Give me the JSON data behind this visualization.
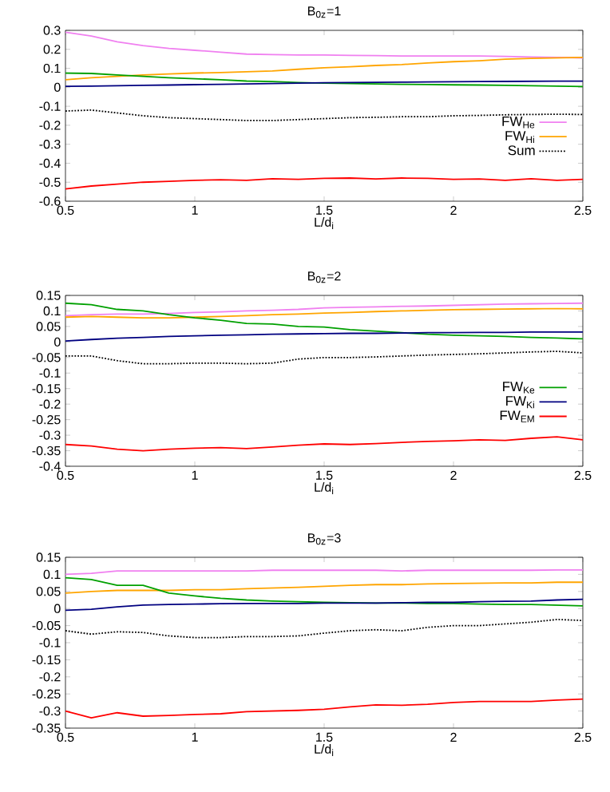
{
  "chart_data": [
    {
      "type": "line",
      "title": "B$_{0z}$=1",
      "xlabel": "L/d$_{i}$",
      "x": [
        0.5,
        0.6,
        0.7,
        0.8,
        0.9,
        1,
        1.1,
        1.2,
        1.3,
        1.4,
        1.5,
        1.6,
        1.7,
        1.8,
        1.9,
        2,
        2.1,
        2.2,
        2.3,
        2.4,
        2.5
      ],
      "xlim": [
        0.5,
        2.5
      ],
      "xticks": [
        0.5,
        1,
        1.5,
        2,
        2.5
      ],
      "ylim": [
        -0.6,
        0.3
      ],
      "yticks": [
        -0.6,
        -0.5,
        -0.4,
        -0.3,
        -0.2,
        -0.1,
        0,
        0.1,
        0.2,
        0.3
      ],
      "legend": "bottom right",
      "marker": "none",
      "line_style": "solid",
      "grid": false,
      "series": [
        {
          "name": "FW$_{He}$",
          "color": "#f080f0",
          "values": [
            0.29,
            0.27,
            0.24,
            0.22,
            0.205,
            0.195,
            0.185,
            0.175,
            0.172,
            0.17,
            0.17,
            0.168,
            0.167,
            0.165,
            0.165,
            0.165,
            0.165,
            0.163,
            0.16,
            0.158,
            0.155
          ]
        },
        {
          "name": "FW$_{Hi}$",
          "color": "#ffa500",
          "values": [
            0.04,
            0.05,
            0.058,
            0.065,
            0.07,
            0.075,
            0.078,
            0.082,
            0.086,
            0.095,
            0.103,
            0.108,
            0.115,
            0.12,
            0.128,
            0.135,
            0.14,
            0.148,
            0.152,
            0.155,
            0.158
          ]
        },
        {
          "name": "Sum",
          "color": "#000000",
          "line_style": "dotted",
          "values": [
            -0.125,
            -0.12,
            -0.135,
            -0.15,
            -0.16,
            -0.165,
            -0.17,
            -0.175,
            -0.175,
            -0.17,
            -0.165,
            -0.16,
            -0.158,
            -0.155,
            -0.155,
            -0.15,
            -0.148,
            -0.145,
            -0.143,
            -0.142,
            -0.143
          ]
        },
        {
          "color": "#00a000",
          "values": [
            0.075,
            0.073,
            0.065,
            0.058,
            0.05,
            0.045,
            0.04,
            0.033,
            0.03,
            0.025,
            0.022,
            0.02,
            0.018,
            0.016,
            0.015,
            0.013,
            0.012,
            0.01,
            0.008,
            0.006,
            0.004
          ]
        },
        {
          "color": "#000080",
          "values": [
            0.005,
            0.006,
            0.008,
            0.01,
            0.012,
            0.014,
            0.016,
            0.018,
            0.02,
            0.022,
            0.024,
            0.025,
            0.026,
            0.027,
            0.028,
            0.029,
            0.03,
            0.031,
            0.032,
            0.033,
            0.033
          ]
        },
        {
          "color": "#ff0000",
          "values": [
            -0.535,
            -0.52,
            -0.51,
            -0.5,
            -0.495,
            -0.49,
            -0.487,
            -0.49,
            -0.482,
            -0.485,
            -0.48,
            -0.478,
            -0.483,
            -0.478,
            -0.48,
            -0.485,
            -0.483,
            -0.49,
            -0.482,
            -0.49,
            -0.485
          ]
        }
      ]
    },
    {
      "type": "line",
      "title": "B$_{0z}$=2",
      "xlabel": "L/d$_{i}$",
      "x": [
        0.5,
        0.6,
        0.7,
        0.8,
        0.9,
        1,
        1.1,
        1.2,
        1.3,
        1.4,
        1.5,
        1.6,
        1.7,
        1.8,
        1.9,
        2,
        2.1,
        2.2,
        2.3,
        2.4,
        2.5
      ],
      "xlim": [
        0.5,
        2.5
      ],
      "xticks": [
        0.5,
        1,
        1.5,
        2,
        2.5
      ],
      "ylim": [
        -0.4,
        0.15
      ],
      "yticks": [
        -0.4,
        -0.35,
        -0.3,
        -0.25,
        -0.2,
        -0.15,
        -0.1,
        -0.05,
        0,
        0.05,
        0.1,
        0.15
      ],
      "legend": "bottom right",
      "marker": "none",
      "line_style": "solid",
      "grid": false,
      "series": [
        {
          "color": "#f080f0",
          "values": [
            0.085,
            0.088,
            0.09,
            0.09,
            0.092,
            0.095,
            0.097,
            0.1,
            0.102,
            0.105,
            0.11,
            0.112,
            0.113,
            0.115,
            0.116,
            0.118,
            0.12,
            0.122,
            0.123,
            0.124,
            0.125
          ]
        },
        {
          "color": "#ffa500",
          "values": [
            0.08,
            0.082,
            0.08,
            0.078,
            0.078,
            0.08,
            0.082,
            0.085,
            0.088,
            0.09,
            0.093,
            0.095,
            0.098,
            0.1,
            0.102,
            0.104,
            0.105,
            0.106,
            0.107,
            0.108,
            0.107
          ]
        },
        {
          "color": "#000000",
          "line_style": "dotted",
          "values": [
            -0.045,
            -0.045,
            -0.06,
            -0.07,
            -0.07,
            -0.068,
            -0.068,
            -0.07,
            -0.068,
            -0.055,
            -0.05,
            -0.05,
            -0.048,
            -0.045,
            -0.042,
            -0.04,
            -0.038,
            -0.035,
            -0.032,
            -0.03,
            -0.035
          ]
        },
        {
          "name": "FW$_{Ke}$",
          "color": "#00a000",
          "values": [
            0.125,
            0.12,
            0.105,
            0.1,
            0.088,
            0.078,
            0.07,
            0.06,
            0.058,
            0.05,
            0.048,
            0.04,
            0.035,
            0.03,
            0.025,
            0.022,
            0.02,
            0.018,
            0.015,
            0.013,
            0.01
          ]
        },
        {
          "name": "FW$_{Ki}$",
          "color": "#000080",
          "values": [
            0.003,
            0.008,
            0.012,
            0.015,
            0.018,
            0.02,
            0.022,
            0.023,
            0.025,
            0.026,
            0.027,
            0.028,
            0.028,
            0.029,
            0.03,
            0.03,
            0.031,
            0.031,
            0.032,
            0.032,
            0.032
          ]
        },
        {
          "name": "FW$_{EM}$",
          "color": "#ff0000",
          "values": [
            -0.33,
            -0.335,
            -0.345,
            -0.35,
            -0.345,
            -0.342,
            -0.34,
            -0.343,
            -0.338,
            -0.332,
            -0.328,
            -0.33,
            -0.327,
            -0.323,
            -0.32,
            -0.318,
            -0.315,
            -0.317,
            -0.31,
            -0.305,
            -0.315
          ]
        }
      ]
    },
    {
      "type": "line",
      "title": "B$_{0z}$=3",
      "xlabel": "L/d$_{i}$",
      "x": [
        0.5,
        0.6,
        0.7,
        0.8,
        0.9,
        1,
        1.1,
        1.2,
        1.3,
        1.4,
        1.5,
        1.6,
        1.7,
        1.8,
        1.9,
        2,
        2.1,
        2.2,
        2.3,
        2.4,
        2.5
      ],
      "xlim": [
        0.5,
        2.5
      ],
      "xticks": [
        0.5,
        1,
        1.5,
        2,
        2.5
      ],
      "ylim": [
        -0.35,
        0.15
      ],
      "yticks": [
        -0.35,
        -0.3,
        -0.25,
        -0.2,
        -0.15,
        -0.1,
        -0.05,
        0,
        0.05,
        0.1,
        0.15
      ],
      "marker": "none",
      "line_style": "solid",
      "grid": false,
      "series": [
        {
          "color": "#f080f0",
          "values": [
            0.1,
            0.103,
            0.11,
            0.11,
            0.11,
            0.11,
            0.11,
            0.11,
            0.112,
            0.112,
            0.112,
            0.112,
            0.112,
            0.11,
            0.112,
            0.112,
            0.112,
            0.112,
            0.112,
            0.113,
            0.113
          ]
        },
        {
          "color": "#ffa500",
          "values": [
            0.045,
            0.05,
            0.053,
            0.053,
            0.053,
            0.055,
            0.055,
            0.058,
            0.06,
            0.062,
            0.065,
            0.068,
            0.07,
            0.07,
            0.072,
            0.073,
            0.074,
            0.075,
            0.075,
            0.077,
            0.077
          ]
        },
        {
          "color": "#000000",
          "line_style": "dotted",
          "values": [
            -0.065,
            -0.075,
            -0.068,
            -0.07,
            -0.08,
            -0.085,
            -0.085,
            -0.082,
            -0.082,
            -0.08,
            -0.072,
            -0.065,
            -0.062,
            -0.065,
            -0.055,
            -0.05,
            -0.05,
            -0.045,
            -0.04,
            -0.032,
            -0.035
          ]
        },
        {
          "color": "#00a000",
          "values": [
            0.09,
            0.085,
            0.068,
            0.068,
            0.045,
            0.037,
            0.03,
            0.025,
            0.022,
            0.02,
            0.018,
            0.017,
            0.016,
            0.016,
            0.015,
            0.015,
            0.013,
            0.012,
            0.012,
            0.01,
            0.008
          ]
        },
        {
          "color": "#000080",
          "values": [
            -0.005,
            -0.002,
            0.005,
            0.01,
            0.012,
            0.013,
            0.014,
            0.015,
            0.015,
            0.015,
            0.016,
            0.016,
            0.016,
            0.017,
            0.018,
            0.018,
            0.02,
            0.021,
            0.022,
            0.025,
            0.027
          ]
        },
        {
          "color": "#ff0000",
          "values": [
            -0.3,
            -0.32,
            -0.305,
            -0.315,
            -0.313,
            -0.31,
            -0.308,
            -0.302,
            -0.3,
            -0.298,
            -0.295,
            -0.288,
            -0.282,
            -0.283,
            -0.28,
            -0.275,
            -0.272,
            -0.272,
            -0.272,
            -0.268,
            -0.265
          ]
        }
      ]
    }
  ]
}
